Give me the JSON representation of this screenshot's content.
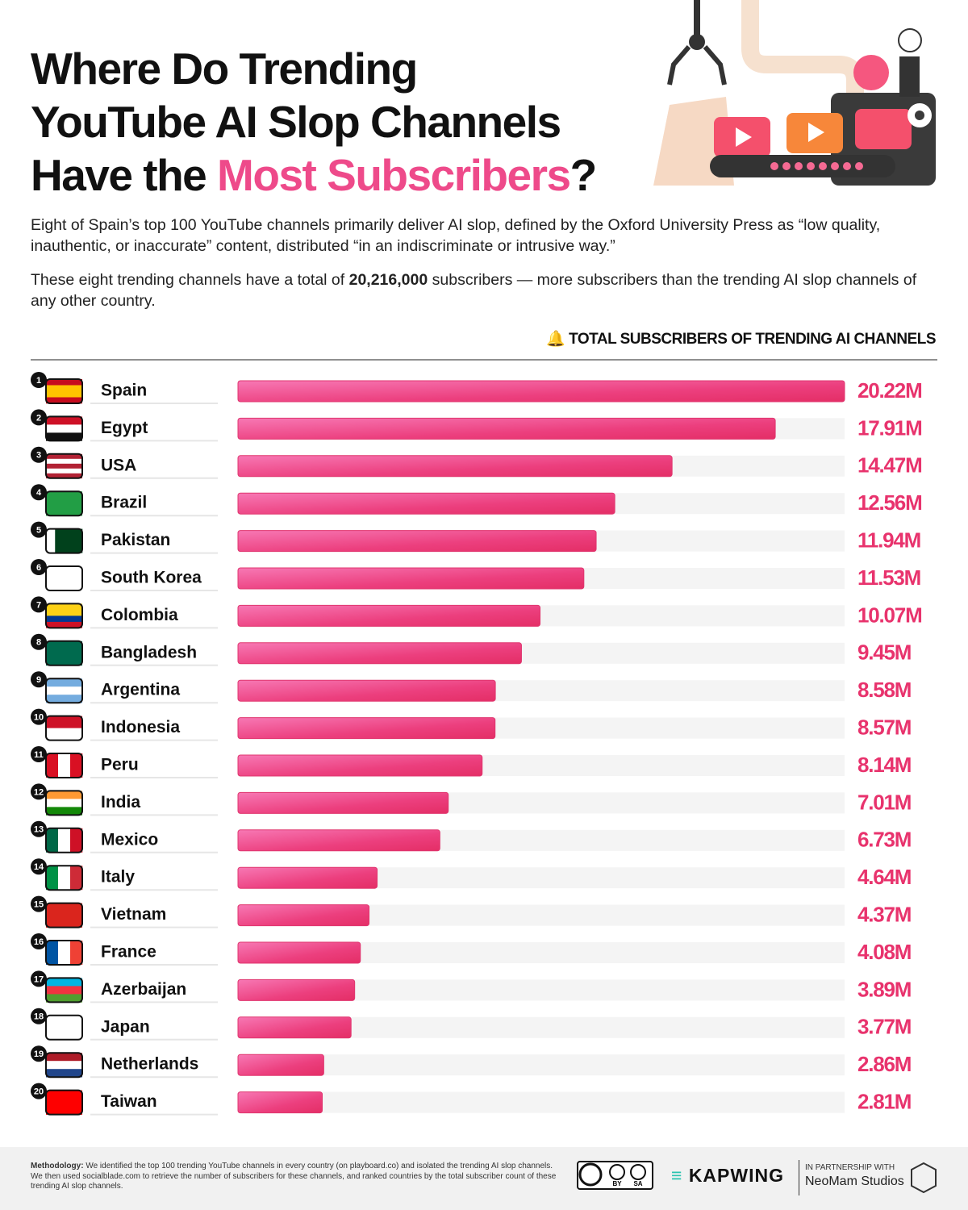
{
  "chart_data": {
    "type": "bar",
    "title_lines": [
      "Where Do Trending",
      "YouTube AI Slop Channels"
    ],
    "title_line3_start": "Have the",
    "title_highlight": "Most Subscribers",
    "title_end": "?",
    "description": "Eight of Spain’s top 100 YouTube channels primarily deliver AI slop, defined by the Oxford University Press as “low quality, inauthentic, or inaccurate” content, distributed “in an indiscriminate or intrusive way.”",
    "summary_start": "These eight trending channels have a total of",
    "summary_total": "20,216,000",
    "summary_end": "subscribers — more subscribers than the trending AI slop channels of any other country.",
    "axis_label": "TOTAL SUBSCRIBERS OF TRENDING AI CHANNELS",
    "color": "#e8336d",
    "ranks": [
      1,
      2,
      3,
      4,
      5,
      6,
      7,
      8,
      9,
      10,
      11,
      12,
      13,
      14,
      15,
      16,
      17,
      18,
      19,
      20
    ],
    "categories": [
      "Spain",
      "Egypt",
      "USA",
      "Brazil",
      "Pakistan",
      "South Korea",
      "Colombia",
      "Bangladesh",
      "Argentina",
      "Indonesia",
      "Peru",
      "India",
      "Mexico",
      "Italy",
      "Vietnam",
      "France",
      "Azerbaijan",
      "Japan",
      "Netherlands",
      "Taiwan"
    ],
    "values": [
      20.22,
      17.91,
      14.47,
      12.56,
      11.94,
      11.53,
      10.07,
      9.45,
      8.58,
      8.57,
      8.14,
      7.01,
      6.73,
      4.64,
      4.37,
      4.08,
      3.89,
      3.77,
      2.86,
      2.81
    ],
    "value_labels": [
      "20.22M",
      "17.91M",
      "14.47M",
      "12.56M",
      "11.94M",
      "11.53M",
      "10.07M",
      "9.45M",
      "8.58M",
      "8.57M",
      "8.14M",
      "7.01M",
      "6.73M",
      "4.64M",
      "4.37M",
      "4.08M",
      "3.89M",
      "3.77M",
      "2.86M",
      "2.81M"
    ]
  },
  "footer": {
    "methodology_label": "Methodology:",
    "methodology": "We identified the top 100 trending YouTube channels in every country (on playboard.co) and isolated the trending AI slop channels. We then used socialblade.com to retrieve the number of subscribers for these channels, and ranked countries by the total subscriber count of these trending AI slop channels.",
    "license_by": "BY",
    "license_sa": "SA",
    "brand": "KAPWING",
    "partnership": "IN PARTNERSHIP WITH",
    "partner": "NeoMam Studios"
  }
}
